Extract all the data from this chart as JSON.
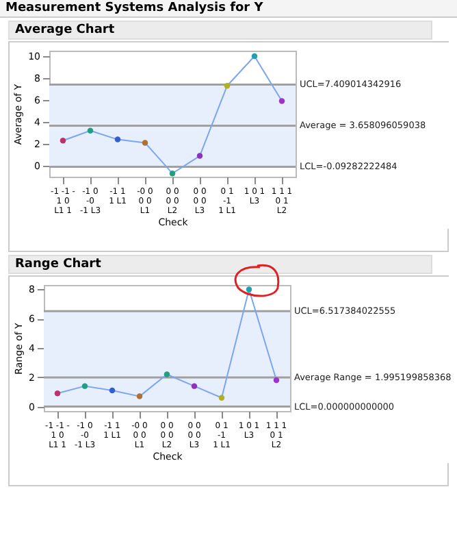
{
  "chart_data": [
    {
      "type": "line",
      "title": "Average Chart",
      "annotations": [
        "Measurement Systems Analysis for Y"
      ],
      "xlabel": "Check",
      "ylabel": "Average of Y",
      "categories": [
        "-1 -1 -\n1 0\nL1 1",
        "-1 0\n-0\n-1 L3",
        "-1 1\n1 L1",
        "-0 0\n0 0\nL1",
        "0 0\n0 0\nL2",
        "0 0\n0 0\nL3",
        "0 1\n-1\n1 L1",
        "1 0 1\nL3",
        "1 1 1\n0 1\nL2"
      ],
      "series": [
        {
          "color": "#7aa6f0",
          "colors": [
            "#c0306a",
            "#20a080",
            "#3060d0",
            "#b07030",
            "#20a080",
            "#9030c0",
            "#b0b020",
            "#20a0b0",
            "#a030d0"
          ],
          "values": [
            2.3,
            3.2,
            2.4,
            2.1,
            -0.7,
            0.9,
            7.3,
            10,
            5.9
          ]
        }
      ],
      "ylim": [
        -1,
        10.5
      ],
      "yticks": [
        0,
        2,
        4,
        6,
        8,
        10
      ],
      "marker": "circle",
      "grid": false,
      "ref_lines": [
        {
          "axis": "y",
          "value": 7.409014342916,
          "label": "UCL=7.409014342916",
          "color": "#a0a0a0"
        },
        {
          "axis": "y",
          "value": 3.658096059038,
          "label": "Average = 3.658096059038",
          "color": "#a0a0a0"
        },
        {
          "axis": "y",
          "value": -0.09282222484,
          "label": "LCL=-0.09282222484",
          "color": "#a0a0a0"
        }
      ],
      "bands": [
        {
          "axis": "y",
          "from": -0.09282222484,
          "to": 7.409014342916,
          "color": "#e8effc"
        }
      ]
    },
    {
      "type": "line",
      "title": "Range Chart",
      "xlabel": "Check",
      "ylabel": "Range of Y",
      "categories": [
        "-1 -1 -\n1 0\nL1 1",
        "-1 0\n-0\n-1 L3",
        "-1 1\n1 L1",
        "-0 0\n0 0\nL1",
        "0 0\n0 0\nL2",
        "0 0\n0 0\nL3",
        "0 1\n-1\n1 L1",
        "1 0 1\nL3",
        "1 1 1\n0 1\nL2"
      ],
      "series": [
        {
          "color": "#7aa6f0",
          "colors": [
            "#c0306a",
            "#20a080",
            "#3060d0",
            "#b07030",
            "#20a080",
            "#9030c0",
            "#b0b020",
            "#20a0b0",
            "#a030d0"
          ],
          "values": [
            0.9,
            1.4,
            1.1,
            0.7,
            2.2,
            1.4,
            0.6,
            8,
            1.8
          ]
        }
      ],
      "ylim": [
        -0.3,
        8.3
      ],
      "yticks": [
        0,
        2,
        4,
        6,
        8
      ],
      "marker": "circle",
      "grid": false,
      "ref_lines": [
        {
          "axis": "y",
          "value": 6.517384022555,
          "label": "UCL=6.517384022555",
          "color": "#a0a0a0"
        },
        {
          "axis": "y",
          "value": 1.995199858368,
          "label": "Average Range = 1.995199858368",
          "color": "#a0a0a0"
        },
        {
          "axis": "y",
          "value": 0,
          "label": "LCL=0.000000000000",
          "color": "#a0a0a0"
        }
      ],
      "bands": [
        {
          "axis": "y",
          "from": 0,
          "to": 6.517384022555,
          "color": "#e8effc"
        }
      ]
    }
  ]
}
